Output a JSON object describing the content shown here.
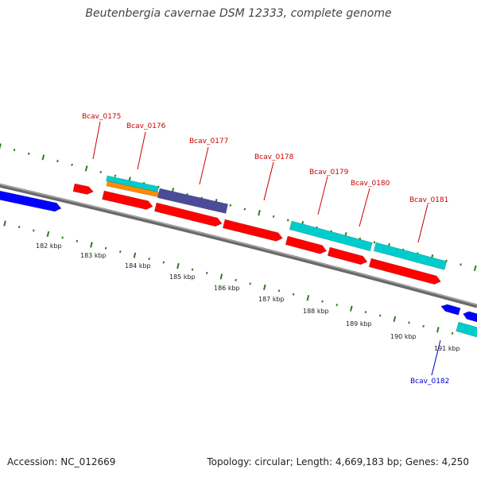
{
  "title": "Beutenbergia cavernae DSM 12333, complete genome",
  "footer": {
    "accession": "Accession: NC_012669",
    "topology": "Topology: circular; Length: 4,669,183 bp; Genes: 4,250"
  },
  "colors": {
    "backbone": "#808080",
    "tick": "#2e7d1f",
    "label_red": "#cc0000",
    "label_blue": "#0000cc",
    "gene_red": "#ff0000",
    "gene_blue": "#0000ff",
    "gene_cyan": "#00cccc",
    "gene_orange": "#ff8c00",
    "gene_purple": "#4b4b9a"
  },
  "kbp_labels": [
    "182 kbp",
    "183 kbp",
    "184 kbp",
    "185 kbp",
    "186 kbp",
    "187 kbp",
    "188 kbp",
    "189 kbp",
    "190 kbp",
    "191 kbp"
  ],
  "gene_labels": [
    {
      "text": "Bcav_0175",
      "color": "red"
    },
    {
      "text": "Bcav_0176",
      "color": "red"
    },
    {
      "text": "Bcav_0177",
      "color": "red"
    },
    {
      "text": "Bcav_0178",
      "color": "red"
    },
    {
      "text": "Bcav_0179",
      "color": "red"
    },
    {
      "text": "Bcav_0180",
      "color": "red"
    },
    {
      "text": "Bcav_0181",
      "color": "red"
    },
    {
      "text": "Bcav_0182",
      "color": "blue"
    }
  ]
}
